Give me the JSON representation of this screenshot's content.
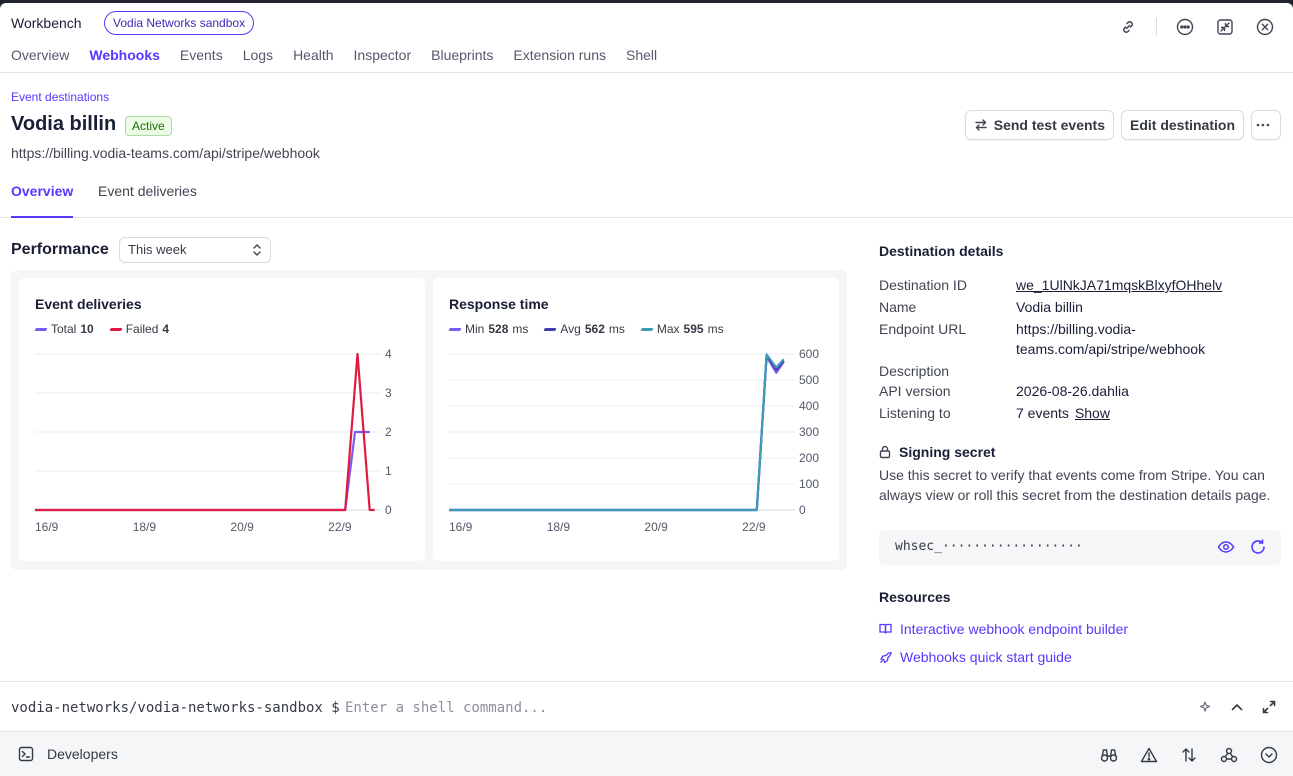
{
  "app": {
    "title": "Workbench",
    "badge": "Vodia Networks sandbox"
  },
  "top_icons": [
    "link-icon",
    "more-icon",
    "collapse-icon",
    "close-icon"
  ],
  "tabs": [
    {
      "label": "Overview",
      "active": false
    },
    {
      "label": "Webhooks",
      "active": true
    },
    {
      "label": "Events",
      "active": false
    },
    {
      "label": "Logs",
      "active": false
    },
    {
      "label": "Health",
      "active": false
    },
    {
      "label": "Inspector",
      "active": false
    },
    {
      "label": "Blueprints",
      "active": false
    },
    {
      "label": "Extension runs",
      "active": false
    },
    {
      "label": "Shell",
      "active": false
    }
  ],
  "page": {
    "breadcrumb": "Event destinations",
    "title": "Vodia billin",
    "status": "Active",
    "url": "https://billing.vodia-teams.com/api/stripe/webhook",
    "send_test_label": "Send test events",
    "edit_label": "Edit destination"
  },
  "sub_tabs": [
    {
      "label": "Overview",
      "active": true
    },
    {
      "label": "Event deliveries",
      "active": false
    }
  ],
  "performance": {
    "title": "Performance",
    "range": "This week"
  },
  "chart_data": [
    {
      "type": "line",
      "title": "Event deliveries",
      "x": [
        "16/9",
        "18/9",
        "20/9",
        "22/9"
      ],
      "ylim": [
        0,
        4
      ],
      "yticks": [
        "0",
        "1",
        "2",
        "3",
        "4"
      ],
      "series": [
        {
          "name": "Total",
          "summary": "10",
          "color": "#7a5af8",
          "points": [
            [
              0,
              0
            ],
            [
              6.35,
              0
            ],
            [
              6.55,
              2
            ],
            [
              6.85,
              2
            ]
          ]
        },
        {
          "name": "Failed",
          "summary": "4",
          "color": "#df1b41",
          "points": [
            [
              0,
              0
            ],
            [
              6.35,
              0
            ],
            [
              6.6,
              4
            ],
            [
              6.85,
              0
            ],
            [
              6.95,
              0
            ]
          ]
        }
      ]
    },
    {
      "type": "line",
      "title": "Response time",
      "unit": "ms",
      "x": [
        "16/9",
        "18/9",
        "20/9",
        "22/9"
      ],
      "ylim": [
        0,
        600
      ],
      "yticks": [
        "0",
        "100",
        "200",
        "300",
        "400",
        "500",
        "600"
      ],
      "series": [
        {
          "name": "Min",
          "summary": "528",
          "color": "#7a5af8",
          "points": [
            [
              0,
              0
            ],
            [
              6.3,
              0
            ],
            [
              6.5,
              590
            ],
            [
              6.7,
              528
            ],
            [
              6.85,
              570
            ]
          ]
        },
        {
          "name": "Avg",
          "summary": "562",
          "color": "#3d3db0",
          "points": [
            [
              0,
              0
            ],
            [
              6.3,
              0
            ],
            [
              6.5,
              595
            ],
            [
              6.7,
              540
            ],
            [
              6.85,
              575
            ]
          ]
        },
        {
          "name": "Max",
          "summary": "595",
          "color": "#3f9bb6",
          "points": [
            [
              0,
              0
            ],
            [
              6.3,
              0
            ],
            [
              6.5,
              598
            ],
            [
              6.7,
              548
            ],
            [
              6.85,
              580
            ]
          ]
        }
      ]
    }
  ],
  "details": {
    "title": "Destination details",
    "rows": [
      {
        "label": "Destination ID",
        "value": "we_1UlNkJA71mqskBlxyfOHhelv"
      },
      {
        "label": "Name",
        "value": "Vodia billin"
      },
      {
        "label": "Endpoint URL",
        "value": "https://billing.vodia-teams.com/api/stripe/webhook"
      },
      {
        "label": "Description",
        "value": ""
      },
      {
        "label": "API version",
        "value": "2026-08-26.dahlia"
      },
      {
        "label": "Listening to",
        "value": "7 events",
        "action": "Show"
      }
    ]
  },
  "secret": {
    "title": "Signing secret",
    "description": "Use this secret to verify that events come from Stripe. You can always view or roll this secret from the destination details page.",
    "value": "whsec_··················"
  },
  "resources": {
    "title": "Resources",
    "links": [
      "Interactive webhook endpoint builder",
      "Webhooks quick start guide"
    ]
  },
  "shell": {
    "prompt": "vodia-networks/vodia-networks-sandbox $",
    "placeholder": "Enter a shell command..."
  },
  "footer": {
    "label": "Developers"
  }
}
